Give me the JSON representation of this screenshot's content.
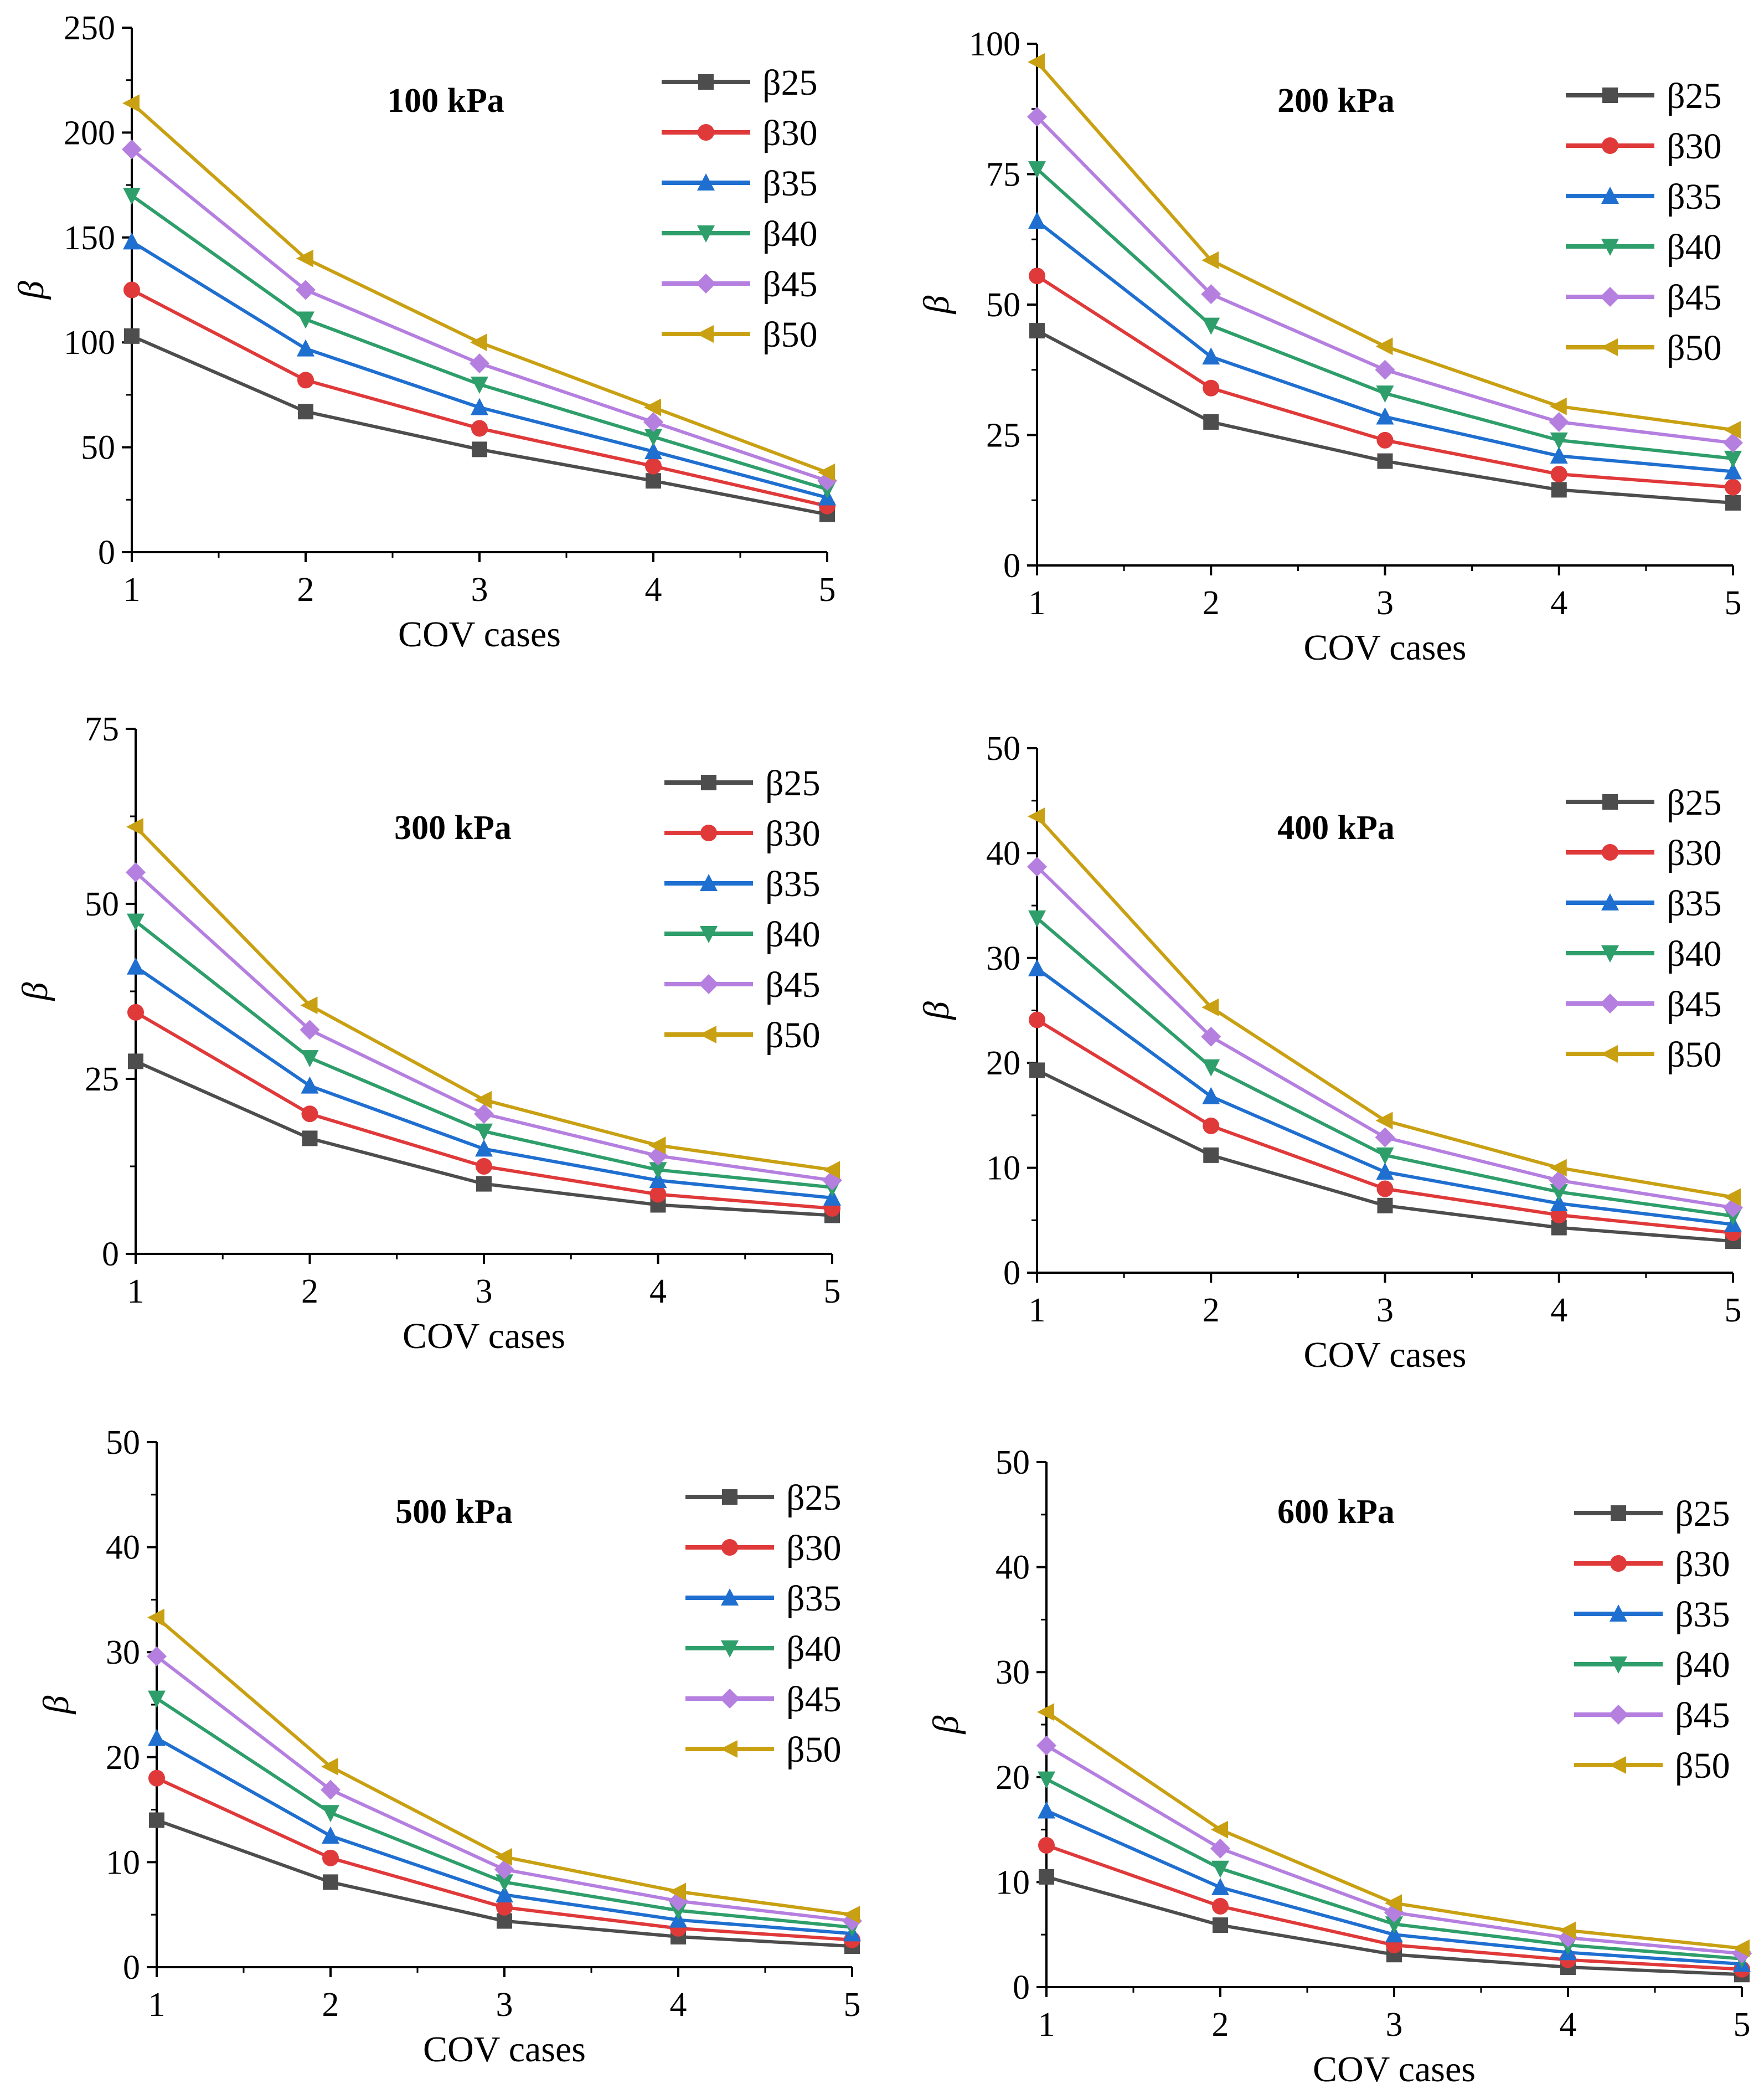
{
  "chart_data": [
    {
      "type": "line",
      "title": "100 kPa",
      "xlabel": "COV cases",
      "ylabel": "β",
      "x": [
        1,
        2,
        3,
        4,
        5
      ],
      "xlim": [
        1,
        5
      ],
      "ylim": [
        0,
        250
      ],
      "yticks": [
        0,
        50,
        100,
        150,
        200,
        250
      ],
      "series": [
        {
          "name": "β25",
          "values": [
            103,
            67,
            49,
            34,
            18
          ]
        },
        {
          "name": "β30",
          "values": [
            125,
            82,
            59,
            41,
            22
          ]
        },
        {
          "name": "β35",
          "values": [
            148,
            97,
            69,
            48,
            26
          ]
        },
        {
          "name": "β40",
          "values": [
            170,
            111,
            80,
            55,
            30
          ]
        },
        {
          "name": "β45",
          "values": [
            192,
            125,
            90,
            62,
            34
          ]
        },
        {
          "name": "β50",
          "values": [
            214,
            140,
            100,
            69,
            38
          ]
        }
      ]
    },
    {
      "type": "line",
      "title": "200 kPa",
      "xlabel": "COV cases",
      "ylabel": "β",
      "x": [
        1,
        2,
        3,
        4,
        5
      ],
      "xlim": [
        1,
        5
      ],
      "ylim": [
        0,
        100
      ],
      "yticks": [
        0,
        25,
        50,
        75,
        100
      ],
      "series": [
        {
          "name": "β25",
          "values": [
            45,
            27.5,
            20,
            14.5,
            12
          ]
        },
        {
          "name": "β30",
          "values": [
            55.5,
            34,
            24,
            17.5,
            15
          ]
        },
        {
          "name": "β35",
          "values": [
            66,
            40,
            28.5,
            21,
            18
          ]
        },
        {
          "name": "β40",
          "values": [
            76,
            46,
            33,
            24,
            20.5
          ]
        },
        {
          "name": "β45",
          "values": [
            86,
            52,
            37.5,
            27.5,
            23.5
          ]
        },
        {
          "name": "β50",
          "values": [
            96.5,
            58.5,
            42,
            30.5,
            26
          ]
        }
      ]
    },
    {
      "type": "line",
      "title": "300 kPa",
      "xlabel": "COV cases",
      "ylabel": "β",
      "x": [
        1,
        2,
        3,
        4,
        5
      ],
      "xlim": [
        1,
        5
      ],
      "ylim": [
        0,
        75
      ],
      "yticks": [
        0,
        25,
        50,
        75
      ],
      "series": [
        {
          "name": "β25",
          "values": [
            27.5,
            16.5,
            10,
            7,
            5.5
          ]
        },
        {
          "name": "β30",
          "values": [
            34.5,
            20,
            12.5,
            8.5,
            6.5
          ]
        },
        {
          "name": "β35",
          "values": [
            41,
            24,
            15,
            10.5,
            8
          ]
        },
        {
          "name": "β40",
          "values": [
            47.5,
            28,
            17.5,
            12,
            9.5
          ]
        },
        {
          "name": "β45",
          "values": [
            54.5,
            32,
            20,
            14,
            10.5
          ]
        },
        {
          "name": "β50",
          "values": [
            61,
            35.5,
            22,
            15.5,
            12
          ]
        }
      ]
    },
    {
      "type": "line",
      "title": "400 kPa",
      "xlabel": "COV cases",
      "ylabel": "β",
      "x": [
        1,
        2,
        3,
        4,
        5
      ],
      "xlim": [
        1,
        5
      ],
      "ylim": [
        0,
        50
      ],
      "yticks": [
        0,
        10,
        20,
        30,
        40,
        50
      ],
      "series": [
        {
          "name": "β25",
          "values": [
            19.3,
            11.2,
            6.4,
            4.3,
            3
          ]
        },
        {
          "name": "β30",
          "values": [
            24.1,
            14,
            8,
            5.5,
            3.8
          ]
        },
        {
          "name": "β35",
          "values": [
            29,
            16.8,
            9.6,
            6.6,
            4.6
          ]
        },
        {
          "name": "β40",
          "values": [
            33.8,
            19.6,
            11.2,
            7.7,
            5.4
          ]
        },
        {
          "name": "β45",
          "values": [
            38.7,
            22.5,
            12.9,
            8.8,
            6.2
          ]
        },
        {
          "name": "β50",
          "values": [
            43.5,
            25.3,
            14.5,
            10,
            7.2
          ]
        }
      ]
    },
    {
      "type": "line",
      "title": "500 kPa",
      "xlabel": "COV cases",
      "ylabel": "β",
      "x": [
        1,
        2,
        3,
        4,
        5
      ],
      "xlim": [
        1,
        5
      ],
      "ylim": [
        0,
        50
      ],
      "yticks": [
        0,
        10,
        20,
        30,
        40,
        50
      ],
      "series": [
        {
          "name": "β25",
          "values": [
            14,
            8.1,
            4.4,
            2.9,
            2
          ]
        },
        {
          "name": "β30",
          "values": [
            18,
            10.4,
            5.7,
            3.7,
            2.6
          ]
        },
        {
          "name": "β35",
          "values": [
            21.8,
            12.5,
            6.9,
            4.5,
            3.2
          ]
        },
        {
          "name": "β40",
          "values": [
            25.6,
            14.7,
            8.1,
            5.4,
            3.8
          ]
        },
        {
          "name": "β45",
          "values": [
            29.6,
            16.9,
            9.3,
            6.3,
            4.4
          ]
        },
        {
          "name": "β50",
          "values": [
            33.3,
            19.1,
            10.5,
            7.2,
            5
          ]
        }
      ]
    },
    {
      "type": "line",
      "title": "600 kPa",
      "xlabel": "COV cases",
      "ylabel": "β",
      "x": [
        1,
        2,
        3,
        4,
        5
      ],
      "xlim": [
        1,
        5
      ],
      "ylim": [
        0,
        50
      ],
      "yticks": [
        0,
        10,
        20,
        30,
        40,
        50
      ],
      "series": [
        {
          "name": "β25",
          "values": [
            10.5,
            5.9,
            3.1,
            1.9,
            1.2
          ]
        },
        {
          "name": "β30",
          "values": [
            13.5,
            7.7,
            4,
            2.6,
            1.7
          ]
        },
        {
          "name": "β35",
          "values": [
            16.8,
            9.5,
            5,
            3.3,
            2.2
          ]
        },
        {
          "name": "β40",
          "values": [
            19.8,
            11.3,
            6,
            4,
            2.7
          ]
        },
        {
          "name": "β45",
          "values": [
            23,
            13.2,
            7.1,
            4.7,
            3.2
          ]
        },
        {
          "name": "β50",
          "values": [
            26.2,
            15,
            8,
            5.4,
            3.7
          ]
        }
      ]
    }
  ],
  "series_styles": [
    {
      "color": "#4d4d4d",
      "marker": "square"
    },
    {
      "color": "#e0393a",
      "marker": "circle"
    },
    {
      "color": "#1f6fd0",
      "marker": "triangle-up"
    },
    {
      "color": "#2e9e6a",
      "marker": "triangle-down"
    },
    {
      "color": "#b57fe0",
      "marker": "diamond"
    },
    {
      "color": "#c9a012",
      "marker": "triangle-left"
    }
  ]
}
